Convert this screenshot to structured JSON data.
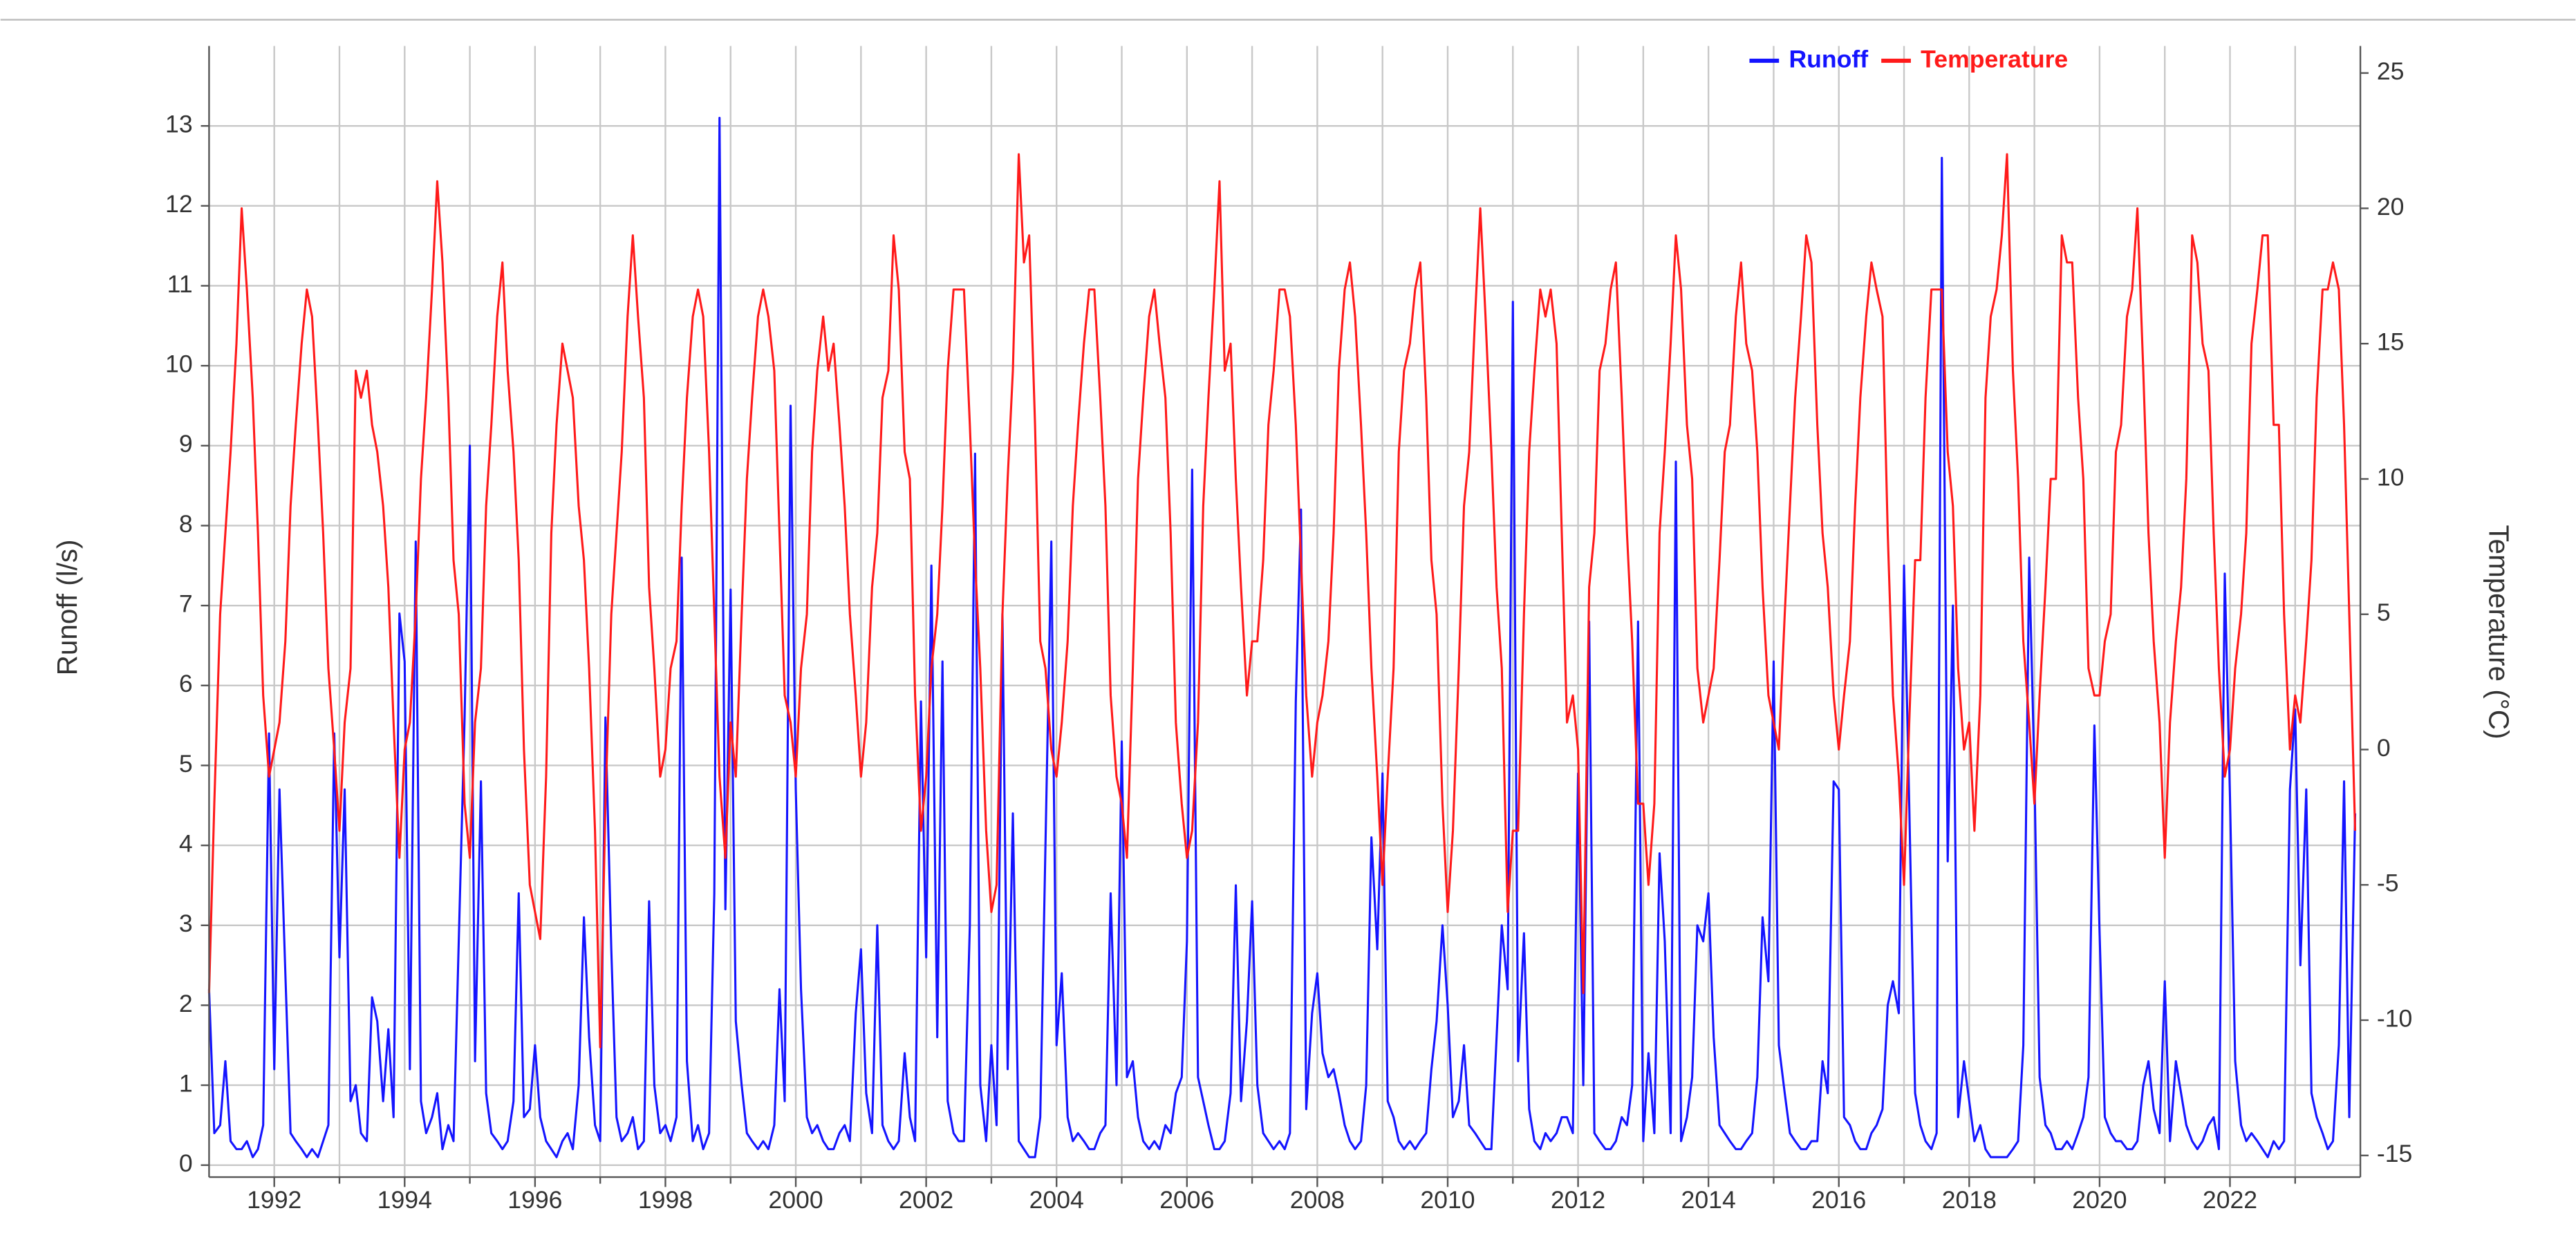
{
  "chart_data": {
    "type": "line",
    "y_label": "Runoff (l/s)",
    "y2_label": "Temperature (°C)",
    "legend": "top-right",
    "grid": true,
    "xlim": [
      1991,
      2024
    ],
    "xticks": [
      1992,
      1994,
      1996,
      1998,
      2000,
      2002,
      2004,
      2006,
      2008,
      2010,
      2012,
      2014,
      2016,
      2018,
      2020,
      2022
    ],
    "xminorticks": [
      1993,
      1995,
      1997,
      1999,
      2001,
      2003,
      2005,
      2007,
      2009,
      2011,
      2013,
      2015,
      2017,
      2019,
      2021,
      2023
    ],
    "ylim": [
      -0.15,
      14
    ],
    "yticks": [
      0,
      1,
      2,
      3,
      4,
      5,
      6,
      7,
      8,
      9,
      10,
      11,
      12,
      13
    ],
    "y2lim": [
      -15.8,
      26
    ],
    "y2ticks": [
      -15,
      -10,
      -5,
      0,
      5,
      10,
      15,
      20,
      25
    ],
    "x": [
      1991,
      1991.08,
      1991.17,
      1991.25,
      1991.33,
      1991.42,
      1991.5,
      1991.58,
      1991.67,
      1991.75,
      1991.83,
      1991.92,
      1992,
      1992.08,
      1992.17,
      1992.25,
      1992.33,
      1992.42,
      1992.5,
      1992.58,
      1992.67,
      1992.75,
      1992.83,
      1992.92,
      1993,
      1993.08,
      1993.17,
      1993.25,
      1993.33,
      1993.42,
      1993.5,
      1993.58,
      1993.67,
      1993.75,
      1993.83,
      1993.92,
      1994,
      1994.08,
      1994.17,
      1994.25,
      1994.33,
      1994.42,
      1994.5,
      1994.58,
      1994.67,
      1994.75,
      1994.83,
      1994.92,
      1995,
      1995.08,
      1995.17,
      1995.25,
      1995.33,
      1995.42,
      1995.5,
      1995.58,
      1995.67,
      1995.75,
      1995.83,
      1995.92,
      1996,
      1996.08,
      1996.17,
      1996.25,
      1996.33,
      1996.42,
      1996.5,
      1996.58,
      1996.67,
      1996.75,
      1996.83,
      1996.92,
      1997,
      1997.08,
      1997.17,
      1997.25,
      1997.33,
      1997.42,
      1997.5,
      1997.58,
      1997.67,
      1997.75,
      1997.83,
      1997.92,
      1998,
      1998.08,
      1998.17,
      1998.25,
      1998.33,
      1998.42,
      1998.5,
      1998.58,
      1998.67,
      1998.75,
      1998.83,
      1998.92,
      1999,
      1999.08,
      1999.17,
      1999.25,
      1999.33,
      1999.42,
      1999.5,
      1999.58,
      1999.67,
      1999.75,
      1999.83,
      1999.92,
      2000,
      2000.08,
      2000.17,
      2000.25,
      2000.33,
      2000.42,
      2000.5,
      2000.58,
      2000.67,
      2000.75,
      2000.83,
      2000.92,
      2001,
      2001.08,
      2001.17,
      2001.25,
      2001.33,
      2001.42,
      2001.5,
      2001.58,
      2001.67,
      2001.75,
      2001.83,
      2001.92,
      2002,
      2002.08,
      2002.17,
      2002.25,
      2002.33,
      2002.42,
      2002.5,
      2002.58,
      2002.67,
      2002.75,
      2002.83,
      2002.92,
      2003,
      2003.08,
      2003.17,
      2003.25,
      2003.33,
      2003.42,
      2003.5,
      2003.58,
      2003.67,
      2003.75,
      2003.83,
      2003.92,
      2004,
      2004.08,
      2004.17,
      2004.25,
      2004.33,
      2004.42,
      2004.5,
      2004.58,
      2004.67,
      2004.75,
      2004.83,
      2004.92,
      2005,
      2005.08,
      2005.17,
      2005.25,
      2005.33,
      2005.42,
      2005.5,
      2005.58,
      2005.67,
      2005.75,
      2005.83,
      2005.92,
      2006,
      2006.08,
      2006.17,
      2006.25,
      2006.33,
      2006.42,
      2006.5,
      2006.58,
      2006.67,
      2006.75,
      2006.83,
      2006.92,
      2007,
      2007.08,
      2007.17,
      2007.25,
      2007.33,
      2007.42,
      2007.5,
      2007.58,
      2007.67,
      2007.75,
      2007.83,
      2007.92,
      2008,
      2008.08,
      2008.17,
      2008.25,
      2008.33,
      2008.42,
      2008.5,
      2008.58,
      2008.67,
      2008.75,
      2008.83,
      2008.92,
      2009,
      2009.08,
      2009.17,
      2009.25,
      2009.33,
      2009.42,
      2009.5,
      2009.58,
      2009.67,
      2009.75,
      2009.83,
      2009.92,
      2010,
      2010.08,
      2010.17,
      2010.25,
      2010.33,
      2010.42,
      2010.5,
      2010.58,
      2010.67,
      2010.75,
      2010.83,
      2010.92,
      2011,
      2011.08,
      2011.17,
      2011.25,
      2011.33,
      2011.42,
      2011.5,
      2011.58,
      2011.67,
      2011.75,
      2011.83,
      2011.92,
      2012,
      2012.08,
      2012.17,
      2012.25,
      2012.33,
      2012.42,
      2012.5,
      2012.58,
      2012.67,
      2012.75,
      2012.83,
      2012.92,
      2013,
      2013.08,
      2013.17,
      2013.25,
      2013.33,
      2013.42,
      2013.5,
      2013.58,
      2013.67,
      2013.75,
      2013.83,
      2013.92,
      2014,
      2014.08,
      2014.17,
      2014.25,
      2014.33,
      2014.42,
      2014.5,
      2014.58,
      2014.67,
      2014.75,
      2014.83,
      2014.92,
      2015,
      2015.08,
      2015.17,
      2015.25,
      2015.33,
      2015.42,
      2015.5,
      2015.58,
      2015.67,
      2015.75,
      2015.83,
      2015.92,
      2016,
      2016.08,
      2016.17,
      2016.25,
      2016.33,
      2016.42,
      2016.5,
      2016.58,
      2016.67,
      2016.75,
      2016.83,
      2016.92,
      2017,
      2017.08,
      2017.17,
      2017.25,
      2017.33,
      2017.42,
      2017.5,
      2017.58,
      2017.67,
      2017.75,
      2017.83,
      2017.92,
      2018,
      2018.08,
      2018.17,
      2018.25,
      2018.33,
      2018.42,
      2018.5,
      2018.58,
      2018.67,
      2018.75,
      2018.83,
      2018.92,
      2019,
      2019.08,
      2019.17,
      2019.25,
      2019.33,
      2019.42,
      2019.5,
      2019.58,
      2019.67,
      2019.75,
      2019.83,
      2019.92,
      2020,
      2020.08,
      2020.17,
      2020.25,
      2020.33,
      2020.42,
      2020.5,
      2020.58,
      2020.67,
      2020.75,
      2020.83,
      2020.92,
      2021,
      2021.08,
      2021.17,
      2021.25,
      2021.33,
      2021.42,
      2021.5,
      2021.58,
      2021.67,
      2021.75,
      2021.83,
      2021.92,
      2022,
      2022.08,
      2022.17,
      2022.25,
      2022.33,
      2022.42,
      2022.5,
      2022.58,
      2022.67,
      2022.75,
      2022.83,
      2022.92,
      2023,
      2023.08,
      2023.17,
      2023.25,
      2023.33,
      2023.42,
      2023.5,
      2023.58,
      2023.67,
      2023.75,
      2023.83,
      2023.92
    ],
    "series": [
      {
        "name": "Runoff",
        "color": "#1414ff",
        "axis": "y",
        "values": [
          2.2,
          0.4,
          0.5,
          1.3,
          0.3,
          0.2,
          0.2,
          0.3,
          0.1,
          0.2,
          0.5,
          5.4,
          1.2,
          4.7,
          2.4,
          0.4,
          0.3,
          0.2,
          0.1,
          0.2,
          0.1,
          0.3,
          0.5,
          5.4,
          2.6,
          4.7,
          0.8,
          1.0,
          0.4,
          0.3,
          2.1,
          1.8,
          0.8,
          1.7,
          0.6,
          6.9,
          6.3,
          1.2,
          7.8,
          0.8,
          0.4,
          0.6,
          0.9,
          0.2,
          0.5,
          0.3,
          2.8,
          5.6,
          9.0,
          1.3,
          4.8,
          0.9,
          0.4,
          0.3,
          0.2,
          0.3,
          0.8,
          3.4,
          0.6,
          0.7,
          1.5,
          0.6,
          0.3,
          0.2,
          0.1,
          0.3,
          0.4,
          0.2,
          1.0,
          3.1,
          1.6,
          0.5,
          0.3,
          5.6,
          2.7,
          0.6,
          0.3,
          0.4,
          0.6,
          0.2,
          0.3,
          3.3,
          1.0,
          0.4,
          0.5,
          0.3,
          0.6,
          7.6,
          1.3,
          0.3,
          0.5,
          0.2,
          0.4,
          3.4,
          13.1,
          3.2,
          7.2,
          1.8,
          1.0,
          0.4,
          0.3,
          0.2,
          0.3,
          0.2,
          0.5,
          2.2,
          0.8,
          9.5,
          4.7,
          2.2,
          0.6,
          0.4,
          0.5,
          0.3,
          0.2,
          0.2,
          0.4,
          0.5,
          0.3,
          1.9,
          2.7,
          0.9,
          0.4,
          3.0,
          0.5,
          0.3,
          0.2,
          0.3,
          1.4,
          0.6,
          0.3,
          5.8,
          2.6,
          7.5,
          1.6,
          6.3,
          0.8,
          0.4,
          0.3,
          0.3,
          3.0,
          8.9,
          1.0,
          0.3,
          1.5,
          0.5,
          6.9,
          1.2,
          4.4,
          0.3,
          0.2,
          0.1,
          0.1,
          0.6,
          4.0,
          7.8,
          1.5,
          2.4,
          0.6,
          0.3,
          0.4,
          0.3,
          0.2,
          0.2,
          0.4,
          0.5,
          3.4,
          1.0,
          5.3,
          1.1,
          1.3,
          0.6,
          0.3,
          0.2,
          0.3,
          0.2,
          0.5,
          0.4,
          0.9,
          1.1,
          2.8,
          8.7,
          1.1,
          0.8,
          0.5,
          0.2,
          0.2,
          0.3,
          0.9,
          3.5,
          0.8,
          1.8,
          3.3,
          1.0,
          0.4,
          0.3,
          0.2,
          0.3,
          0.2,
          0.4,
          5.8,
          8.2,
          0.7,
          1.9,
          2.4,
          1.4,
          1.1,
          1.2,
          0.9,
          0.5,
          0.3,
          0.2,
          0.3,
          1.0,
          4.1,
          2.7,
          4.9,
          0.8,
          0.6,
          0.3,
          0.2,
          0.3,
          0.2,
          0.3,
          0.4,
          1.2,
          1.8,
          3.0,
          2.0,
          0.6,
          0.8,
          1.5,
          0.5,
          0.4,
          0.3,
          0.2,
          0.2,
          1.6,
          3.0,
          2.2,
          10.8,
          1.3,
          2.9,
          0.7,
          0.3,
          0.2,
          0.4,
          0.3,
          0.4,
          0.6,
          0.6,
          0.4,
          4.9,
          1.0,
          6.8,
          0.4,
          0.3,
          0.2,
          0.2,
          0.3,
          0.6,
          0.5,
          1.0,
          6.8,
          0.3,
          1.4,
          0.4,
          3.9,
          2.8,
          0.4,
          8.8,
          0.3,
          0.6,
          1.1,
          3.0,
          2.8,
          3.4,
          1.6,
          0.5,
          0.4,
          0.3,
          0.2,
          0.2,
          0.3,
          0.4,
          1.1,
          3.1,
          2.3,
          6.3,
          1.5,
          0.9,
          0.4,
          0.3,
          0.2,
          0.2,
          0.3,
          0.3,
          1.3,
          0.9,
          4.8,
          4.7,
          0.6,
          0.5,
          0.3,
          0.2,
          0.2,
          0.4,
          0.5,
          0.7,
          2.0,
          2.3,
          1.9,
          7.5,
          4.5,
          0.9,
          0.5,
          0.3,
          0.2,
          0.4,
          12.6,
          3.8,
          7.0,
          0.6,
          1.3,
          0.8,
          0.3,
          0.5,
          0.2,
          0.1,
          0.1,
          0.1,
          0.1,
          0.2,
          0.3,
          1.5,
          7.6,
          4.9,
          1.1,
          0.5,
          0.4,
          0.2,
          0.2,
          0.3,
          0.2,
          0.4,
          0.6,
          1.1,
          5.5,
          2.9,
          0.6,
          0.4,
          0.3,
          0.3,
          0.2,
          0.2,
          0.3,
          1.0,
          1.3,
          0.7,
          0.4,
          2.3,
          0.3,
          1.3,
          0.9,
          0.5,
          0.3,
          0.2,
          0.3,
          0.5,
          0.6,
          0.2,
          7.4,
          4.6,
          1.3,
          0.5,
          0.3,
          0.4,
          0.3,
          0.2,
          0.1,
          0.3,
          0.2,
          0.3,
          4.7,
          5.7,
          2.5,
          4.7,
          0.9,
          0.6,
          0.4,
          0.2,
          0.3,
          1.5,
          4.8,
          0.6,
          4.4
        ]
      },
      {
        "name": "Temperature",
        "color": "#ff1a1a",
        "axis": "y2",
        "values": [
          -9,
          -2,
          5,
          8,
          11,
          15,
          20,
          17,
          13,
          8,
          2,
          -1,
          0,
          1,
          4,
          9,
          12,
          15,
          17,
          16,
          12,
          8,
          3,
          0,
          -3,
          1,
          3,
          14,
          13,
          14,
          12,
          11,
          9,
          6,
          1,
          -4,
          0,
          1,
          5,
          10,
          13,
          17,
          21,
          18,
          13,
          7,
          5,
          -2,
          -4,
          1,
          3,
          9,
          12,
          16,
          18,
          14,
          11,
          7,
          0,
          -5,
          -6,
          -7,
          -1,
          8,
          12,
          15,
          14,
          13,
          9,
          7,
          3,
          -3,
          -11,
          -2,
          5,
          8,
          11,
          16,
          19,
          16,
          13,
          6,
          3,
          -1,
          0,
          3,
          4,
          9,
          13,
          16,
          17,
          16,
          11,
          5,
          -1,
          -4,
          1,
          -1,
          5,
          10,
          13,
          16,
          17,
          16,
          14,
          8,
          2,
          1,
          -1,
          3,
          5,
          11,
          14,
          16,
          14,
          15,
          12,
          9,
          5,
          2,
          -1,
          1,
          6,
          8,
          13,
          14,
          19,
          17,
          11,
          10,
          2,
          -3,
          -1,
          3,
          5,
          9,
          14,
          17,
          17,
          17,
          12,
          7,
          3,
          -3,
          -6,
          -5,
          5,
          10,
          14,
          22,
          18,
          19,
          12,
          4,
          3,
          0,
          -1,
          1,
          4,
          9,
          12,
          15,
          17,
          17,
          13,
          9,
          2,
          -1,
          -2,
          -4,
          3,
          10,
          13,
          16,
          17,
          15,
          13,
          8,
          1,
          -2,
          -4,
          -3,
          1,
          9,
          13,
          17,
          21,
          14,
          15,
          10,
          6,
          2,
          4,
          4,
          7,
          12,
          14,
          17,
          17,
          16,
          12,
          7,
          2,
          -1,
          1,
          2,
          4,
          8,
          14,
          17,
          18,
          16,
          12,
          8,
          3,
          -1,
          -5,
          -1,
          3,
          11,
          14,
          15,
          17,
          18,
          13,
          7,
          5,
          -2,
          -6,
          -3,
          3,
          9,
          11,
          16,
          20,
          16,
          11,
          6,
          3,
          -6,
          -3,
          -3,
          5,
          11,
          14,
          17,
          16,
          17,
          15,
          8,
          1,
          2,
          0,
          -9,
          6,
          8,
          14,
          15,
          17,
          18,
          13,
          8,
          4,
          -2,
          -2,
          -5,
          -2,
          8,
          11,
          15,
          19,
          17,
          12,
          10,
          3,
          1,
          2,
          3,
          7,
          11,
          12,
          16,
          18,
          15,
          14,
          11,
          6,
          2,
          1,
          0,
          5,
          9,
          13,
          16,
          19,
          18,
          12,
          8,
          6,
          2,
          0,
          2,
          4,
          9,
          13,
          16,
          18,
          17,
          16,
          8,
          2,
          -1,
          -5,
          1,
          7,
          7,
          13,
          17,
          17,
          17,
          11,
          9,
          3,
          0,
          1,
          -3,
          2,
          13,
          16,
          17,
          19,
          22,
          14,
          10,
          4,
          1,
          -2,
          2,
          6,
          10,
          10,
          19,
          18,
          18,
          13,
          10,
          3,
          2,
          2,
          4,
          5,
          11,
          12,
          16,
          17,
          20,
          14,
          8,
          4,
          1,
          -4,
          1,
          4,
          6,
          10,
          19,
          18,
          15,
          14,
          8,
          3,
          -1,
          0,
          3,
          5,
          8,
          15,
          17,
          19,
          19,
          12,
          12,
          5,
          0,
          2,
          1,
          4,
          7,
          13,
          17,
          17,
          18,
          17,
          12,
          5,
          -3
        ]
      }
    ]
  }
}
